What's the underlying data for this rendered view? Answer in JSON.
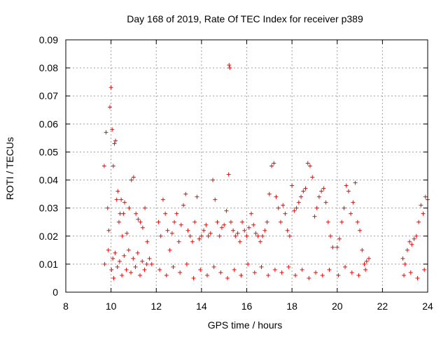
{
  "chart_data": {
    "type": "scatter",
    "title": "Day 168 of 2019, Rate Of TEC Index for receiver p389",
    "xlabel": "GPS time / hours",
    "ylabel": "ROTI / TECUs",
    "xlim": [
      8,
      24
    ],
    "ylim": [
      0,
      0.09
    ],
    "xticks": [
      8,
      10,
      12,
      14,
      16,
      18,
      20,
      22,
      24
    ],
    "yticks": [
      0,
      0.01,
      0.02,
      0.03,
      0.04,
      0.05,
      0.06,
      0.07,
      0.08,
      0.09
    ],
    "ytick_labels": [
      "0",
      "0.01",
      "0.02",
      "0.03",
      "0.04",
      "0.05",
      "0.06",
      "0.07",
      "0.08",
      "0.09"
    ],
    "xtick_labels": [
      "8",
      "10",
      "12",
      "14",
      "16",
      "18",
      "20",
      "22",
      "24"
    ],
    "grid": true,
    "marker": "plus",
    "series": [
      {
        "name": "ROTI",
        "color": "#ff0000",
        "x": [
          9.7,
          9.78,
          9.85,
          9.9,
          9.95,
          10.0,
          10.05,
          10.1,
          10.15,
          10.2,
          10.25,
          10.3,
          10.35,
          10.4,
          10.45,
          10.5,
          10.55,
          10.6,
          10.7,
          10.8,
          10.9,
          11.0,
          11.1,
          11.2,
          11.3,
          11.4,
          11.5,
          11.6,
          11.7,
          11.8,
          9.72,
          9.88,
          10.02,
          10.08,
          10.12,
          10.18,
          10.28,
          10.38,
          10.48,
          10.58,
          10.68,
          10.78,
          10.88,
          10.98,
          11.08,
          11.18,
          11.28,
          11.38,
          11.48,
          11.58,
          12.1,
          12.2,
          12.3,
          12.4,
          12.5,
          12.6,
          12.7,
          12.8,
          12.9,
          13.0,
          13.1,
          13.2,
          13.3,
          13.4,
          13.5,
          13.6,
          13.7,
          13.8,
          13.9,
          14.0,
          14.1,
          14.2,
          14.3,
          14.4,
          14.5,
          14.6,
          14.7,
          14.8,
          14.9,
          15.0,
          15.1,
          15.2,
          15.3,
          15.4,
          15.5,
          15.6,
          15.7,
          15.8,
          15.9,
          16.0,
          16.1,
          16.2,
          16.3,
          16.4,
          16.5,
          16.6,
          16.7,
          16.8,
          16.9,
          17.0,
          17.1,
          17.2,
          17.3,
          17.4,
          17.5,
          17.6,
          17.7,
          17.8,
          17.9,
          18.0,
          18.1,
          18.2,
          18.3,
          18.4,
          18.5,
          18.6,
          18.7,
          18.8,
          18.9,
          19.0,
          19.1,
          19.2,
          19.3,
          19.4,
          19.5,
          19.6,
          19.7,
          19.8,
          20.0,
          20.1,
          20.2,
          20.3,
          20.4,
          20.5,
          20.6,
          20.7,
          20.8,
          20.9,
          21.0,
          21.1,
          21.2,
          21.3,
          21.4,
          22.9,
          23.0,
          23.1,
          23.2,
          23.3,
          23.4,
          23.5,
          23.6,
          23.7,
          23.8,
          23.9,
          24.0,
          12.15,
          12.45,
          12.75,
          13.05,
          13.35,
          13.65,
          13.95,
          14.25,
          14.55,
          14.85,
          15.15,
          15.45,
          15.75,
          16.05,
          16.35,
          16.65,
          16.95,
          17.25,
          17.55,
          17.85,
          18.15,
          18.45,
          18.75,
          19.05,
          19.35,
          19.65,
          20.05,
          20.35,
          20.65,
          20.95,
          21.25,
          22.95,
          23.25,
          23.55,
          23.85,
          15.22,
          15.25
        ],
        "y": [
          0.045,
          0.057,
          0.03,
          0.022,
          0.066,
          0.073,
          0.058,
          0.045,
          0.053,
          0.054,
          0.033,
          0.036,
          0.025,
          0.028,
          0.033,
          0.02,
          0.028,
          0.032,
          0.021,
          0.03,
          0.04,
          0.041,
          0.028,
          0.026,
          0.025,
          0.023,
          0.03,
          0.018,
          0.012,
          0.01,
          0.01,
          0.015,
          0.008,
          0.012,
          0.005,
          0.014,
          0.009,
          0.011,
          0.006,
          0.013,
          0.008,
          0.015,
          0.007,
          0.012,
          0.009,
          0.014,
          0.006,
          0.011,
          0.008,
          0.01,
          0.025,
          0.02,
          0.033,
          0.028,
          0.022,
          0.015,
          0.021,
          0.025,
          0.028,
          0.018,
          0.024,
          0.031,
          0.035,
          0.022,
          0.02,
          0.018,
          0.025,
          0.034,
          0.019,
          0.02,
          0.022,
          0.024,
          0.02,
          0.021,
          0.04,
          0.033,
          0.025,
          0.02,
          0.023,
          0.024,
          0.029,
          0.042,
          0.025,
          0.022,
          0.02,
          0.021,
          0.018,
          0.025,
          0.022,
          0.02,
          0.023,
          0.028,
          0.024,
          0.021,
          0.02,
          0.018,
          0.02,
          0.022,
          0.025,
          0.035,
          0.045,
          0.046,
          0.034,
          0.03,
          0.025,
          0.031,
          0.028,
          0.022,
          0.02,
          0.038,
          0.029,
          0.03,
          0.032,
          0.034,
          0.036,
          0.037,
          0.046,
          0.045,
          0.041,
          0.027,
          0.03,
          0.034,
          0.036,
          0.037,
          0.032,
          0.025,
          0.02,
          0.016,
          0.016,
          0.019,
          0.025,
          0.03,
          0.038,
          0.036,
          0.028,
          0.032,
          0.039,
          0.025,
          0.022,
          0.015,
          0.01,
          0.011,
          0.012,
          0.012,
          0.01,
          0.015,
          0.018,
          0.017,
          0.019,
          0.02,
          0.025,
          0.031,
          0.028,
          0.034,
          0.033,
          0.008,
          0.006,
          0.009,
          0.007,
          0.01,
          0.005,
          0.008,
          0.006,
          0.009,
          0.007,
          0.005,
          0.008,
          0.006,
          0.01,
          0.007,
          0.009,
          0.006,
          0.008,
          0.007,
          0.009,
          0.006,
          0.008,
          0.005,
          0.007,
          0.006,
          0.008,
          0.006,
          0.009,
          0.007,
          0.006,
          0.008,
          0.006,
          0.007,
          0.005,
          0.008,
          0.081,
          0.08
        ]
      }
    ]
  }
}
